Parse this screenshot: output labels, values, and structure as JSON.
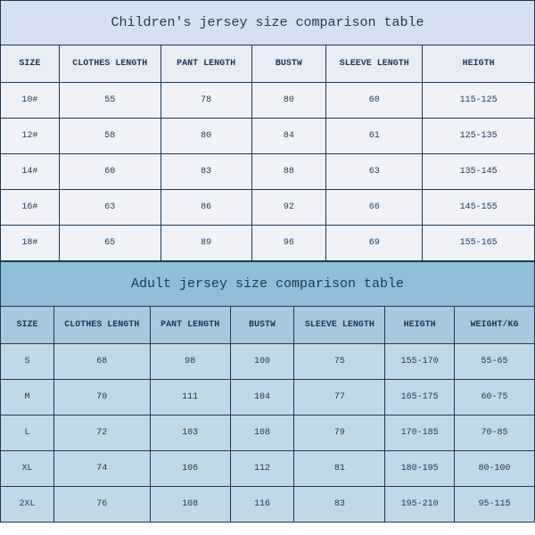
{
  "children": {
    "title": "Children's jersey size comparison table",
    "columns": [
      "SIZE",
      "CLOTHES LENGTH",
      "PANT LENGTH",
      "BUSTW",
      "SLEEVE LENGTH",
      "HEIGTH"
    ],
    "col_widths": [
      "11%",
      "19%",
      "17%",
      "14%",
      "18%",
      "21%"
    ],
    "rows": [
      [
        "10#",
        "55",
        "78",
        "80",
        "60",
        "115-125"
      ],
      [
        "12#",
        "58",
        "80",
        "84",
        "61",
        "125-135"
      ],
      [
        "14#",
        "60",
        "83",
        "88",
        "63",
        "135-145"
      ],
      [
        "16#",
        "63",
        "86",
        "92",
        "66",
        "145-155"
      ],
      [
        "18#",
        "65",
        "89",
        "96",
        "69",
        "155-165"
      ]
    ],
    "title_bg": "#d6e0f0",
    "header_bg": "#e8ecf5",
    "row_bg": "#f0f2f8",
    "border_color": "#1a3a5c",
    "text_color": "#1a3a5c"
  },
  "adult": {
    "title": "Adult jersey size comparison table",
    "columns": [
      "SIZE",
      "CLOTHES LENGTH",
      "PANT LENGTH",
      "BUSTW",
      "SLEEVE LENGTH",
      "HEIGTH",
      "WEIGHT/KG"
    ],
    "col_widths": [
      "10%",
      "18%",
      "15%",
      "12%",
      "17%",
      "13%",
      "15%"
    ],
    "rows": [
      [
        "S",
        "68",
        "98",
        "100",
        "75",
        "155-170",
        "55-65"
      ],
      [
        "M",
        "70",
        "111",
        "104",
        "77",
        "165-175",
        "60-75"
      ],
      [
        "L",
        "72",
        "103",
        "108",
        "79",
        "170-185",
        "70-85"
      ],
      [
        "XL",
        "74",
        "106",
        "112",
        "81",
        "180-195",
        "80-100"
      ],
      [
        "2XL",
        "76",
        "108",
        "116",
        "83",
        "195-210",
        "95-115"
      ]
    ],
    "title_bg": "#92bdd8",
    "header_bg": "#a8c9dc",
    "row_bg": "#c2d8e6",
    "border_color": "#1a3a5c",
    "text_color": "#1a3a5c"
  }
}
